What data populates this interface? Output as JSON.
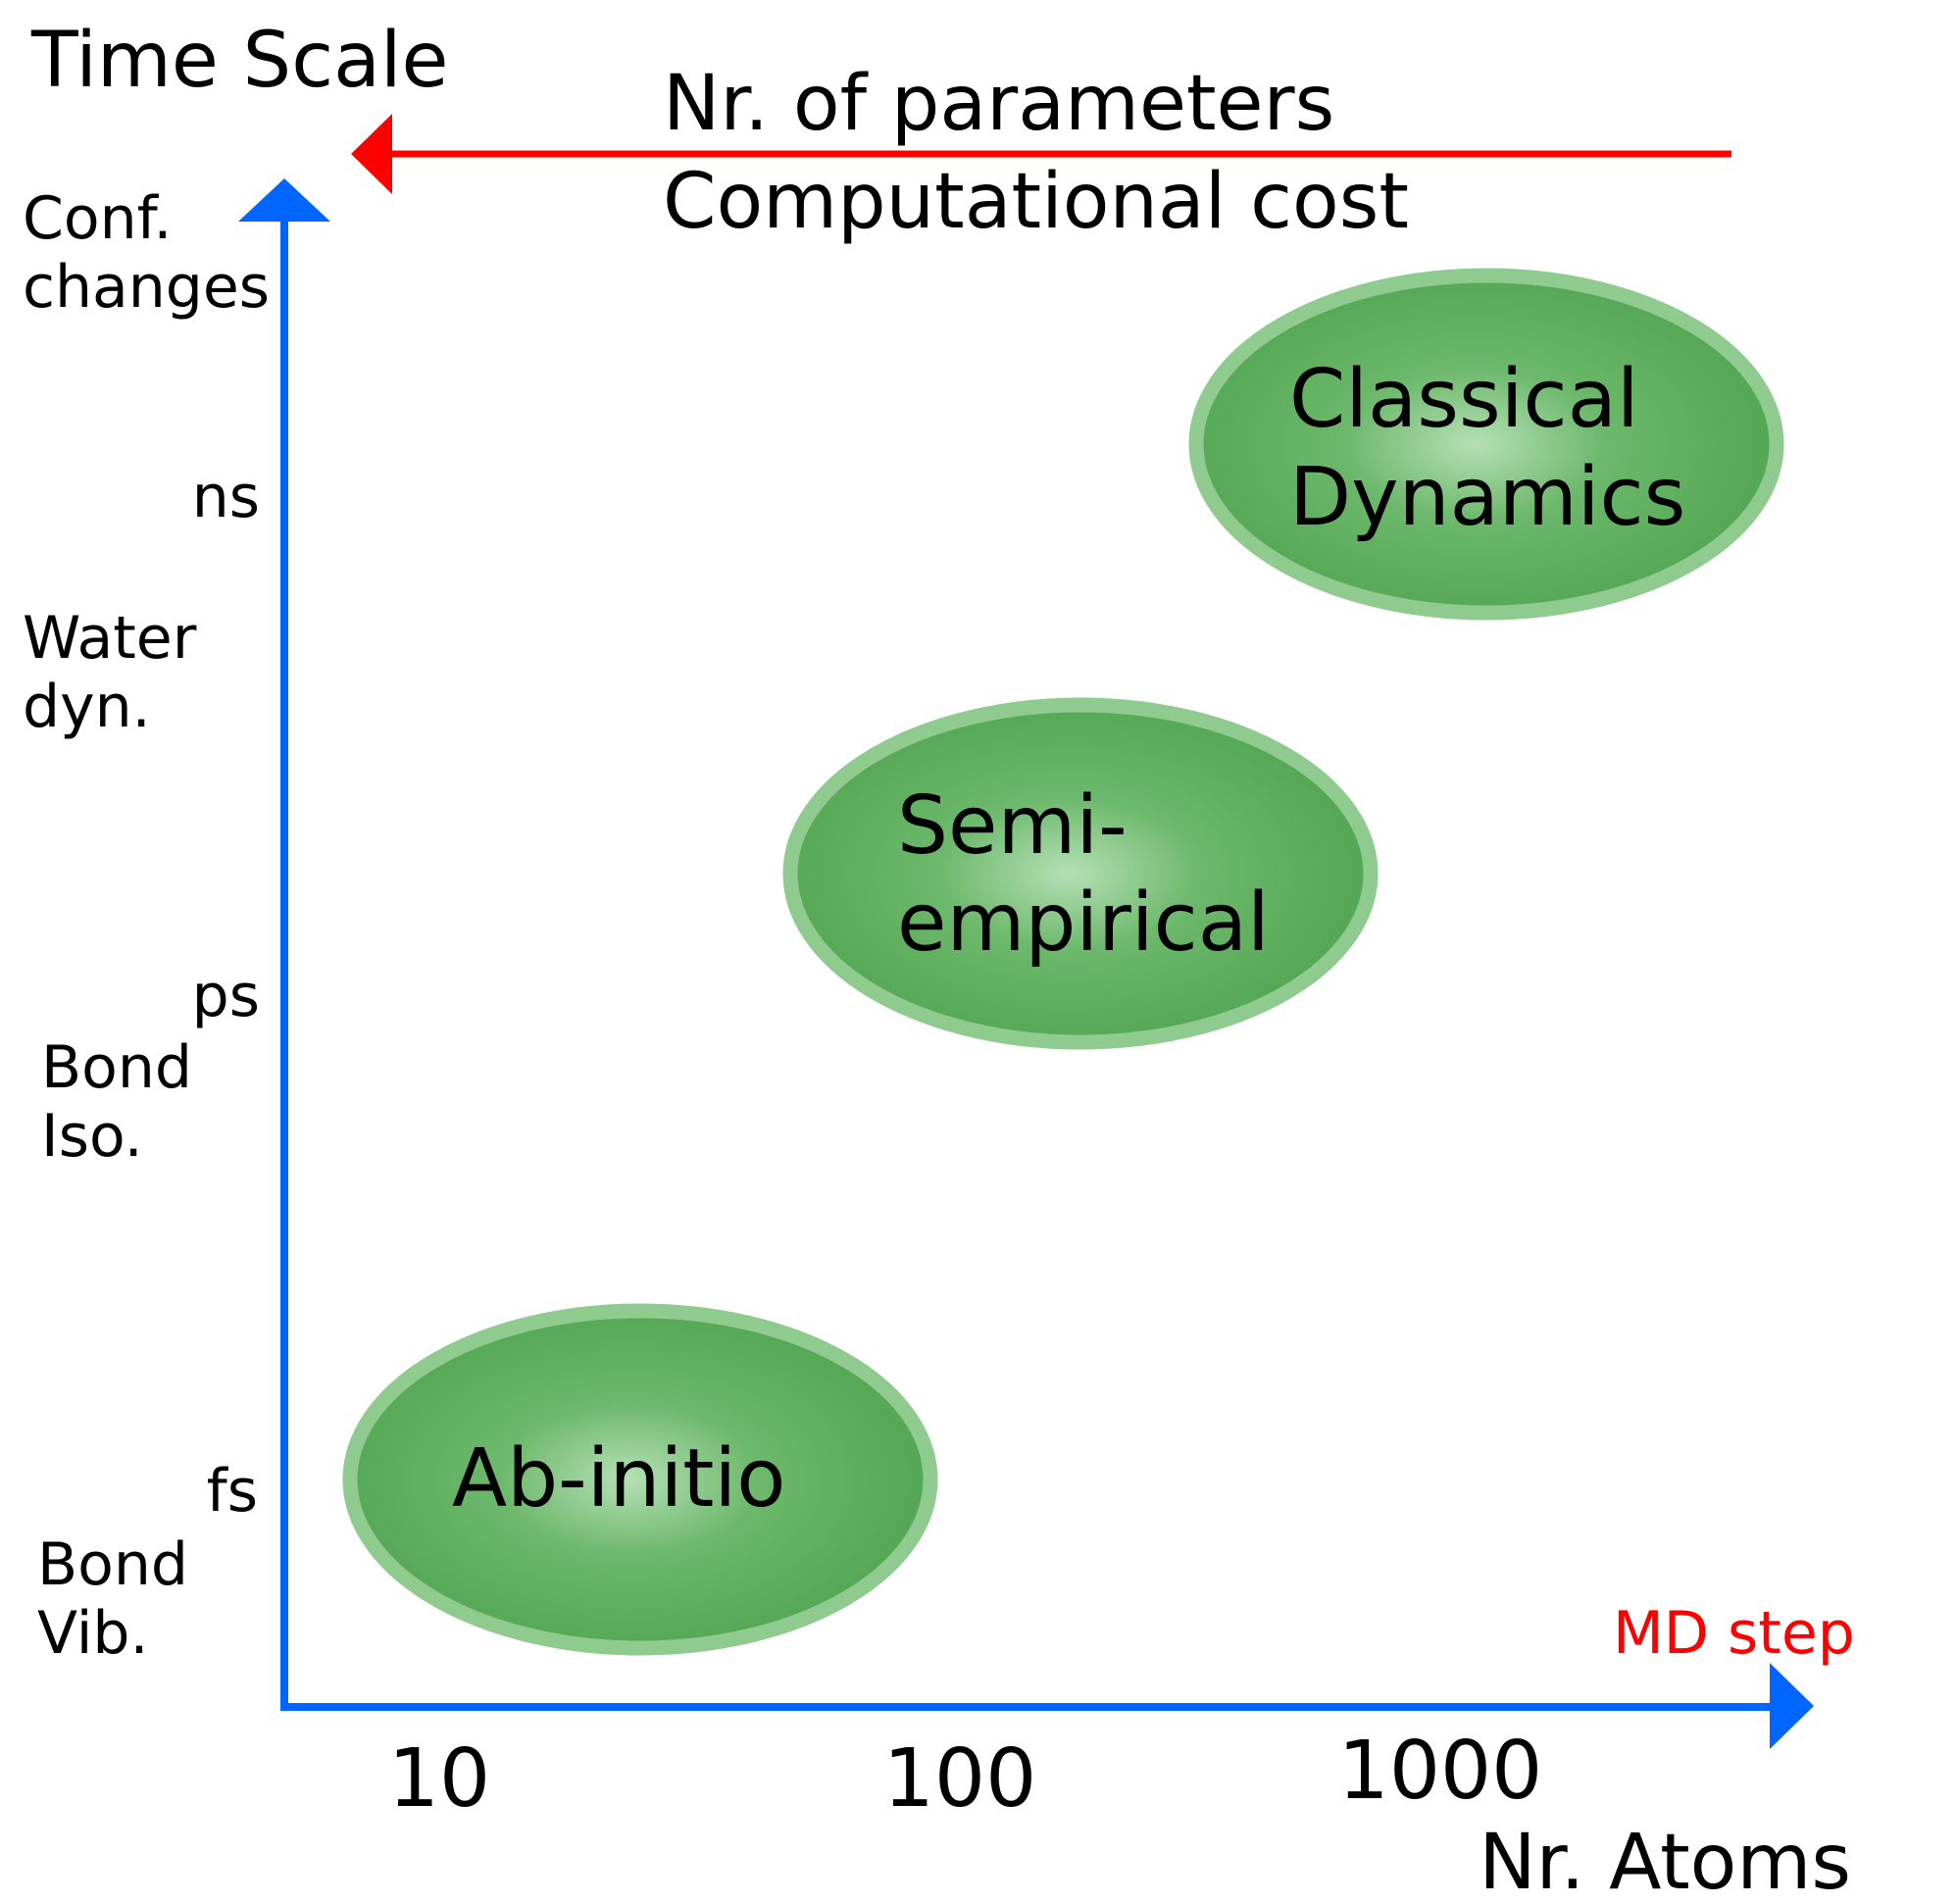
{
  "header": {
    "title": "Time Scale"
  },
  "cost_arrow": {
    "lines": [
      "Nr. of parameters",
      "Computational cost"
    ]
  },
  "y_axis": {
    "annotations": [
      "Conf.",
      "changes",
      "Water",
      "dyn.",
      "Bond",
      "Iso.",
      "Bond",
      "Vib."
    ],
    "ticks": [
      "ns",
      "ps",
      "fs"
    ]
  },
  "x_axis": {
    "title": "Nr. Atoms",
    "ticks": [
      "10",
      "100",
      "1000"
    ],
    "note": "MD step"
  },
  "methods": [
    {
      "lines": [
        "Classical",
        "Dynamics"
      ]
    },
    {
      "lines": [
        "Semi-",
        "empirical"
      ]
    },
    {
      "lines": [
        "Ab-initio"
      ]
    }
  ]
}
